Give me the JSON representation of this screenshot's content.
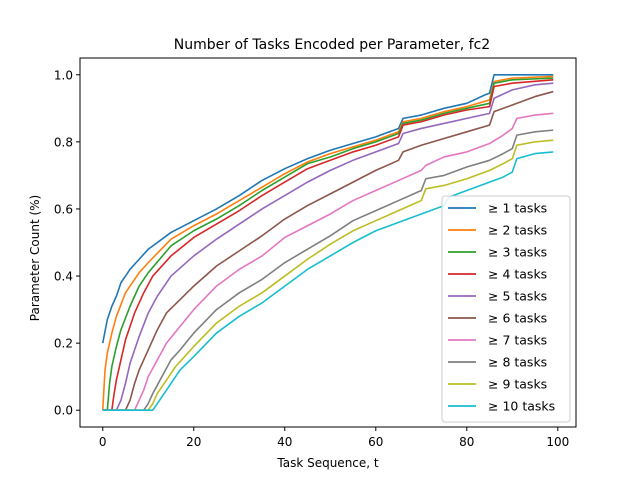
{
  "chart_data": {
    "type": "line",
    "title": "Number of Tasks Encoded per Parameter, fc2",
    "xlabel": "Task Sequence, t",
    "ylabel": "Parameter Count (%)",
    "xlim": [
      -5,
      104
    ],
    "ylim": [
      -0.05,
      1.05
    ],
    "xticks": [
      0,
      20,
      40,
      60,
      80,
      100
    ],
    "yticks": [
      0.0,
      0.2,
      0.4,
      0.6,
      0.8,
      1.0
    ],
    "ytick_labels": [
      "0.0",
      "0.2",
      "0.4",
      "0.6",
      "0.8",
      "1.0"
    ],
    "grid": false,
    "legend_position": "lower-right",
    "series": [
      {
        "name": "≥ 1 tasks",
        "color": "#1f77b4",
        "onset": 0,
        "points": [
          [
            0,
            0.2
          ],
          [
            1,
            0.27
          ],
          [
            2,
            0.31
          ],
          [
            3,
            0.34
          ],
          [
            4,
            0.38
          ],
          [
            6,
            0.42
          ],
          [
            8,
            0.45
          ],
          [
            10,
            0.48
          ],
          [
            15,
            0.53
          ],
          [
            20,
            0.565
          ],
          [
            25,
            0.6
          ],
          [
            30,
            0.64
          ],
          [
            35,
            0.685
          ],
          [
            40,
            0.72
          ],
          [
            45,
            0.75
          ],
          [
            50,
            0.775
          ],
          [
            55,
            0.795
          ],
          [
            60,
            0.815
          ],
          [
            65,
            0.84
          ],
          [
            66,
            0.87
          ],
          [
            70,
            0.88
          ],
          [
            75,
            0.9
          ],
          [
            80,
            0.915
          ],
          [
            84,
            0.94
          ],
          [
            85,
            0.945
          ],
          [
            86,
            1.0
          ],
          [
            99,
            1.0
          ]
        ]
      },
      {
        "name": "≥ 2 tasks",
        "color": "#ff7f0e",
        "onset": 0,
        "points": [
          [
            0,
            0.0
          ],
          [
            0.5,
            0.12
          ],
          [
            1,
            0.17
          ],
          [
            2,
            0.23
          ],
          [
            3,
            0.28
          ],
          [
            5,
            0.35
          ],
          [
            8,
            0.41
          ],
          [
            10,
            0.44
          ],
          [
            15,
            0.51
          ],
          [
            20,
            0.55
          ],
          [
            25,
            0.585
          ],
          [
            30,
            0.625
          ],
          [
            35,
            0.665
          ],
          [
            40,
            0.705
          ],
          [
            45,
            0.74
          ],
          [
            50,
            0.765
          ],
          [
            55,
            0.785
          ],
          [
            60,
            0.805
          ],
          [
            65,
            0.83
          ],
          [
            66,
            0.86
          ],
          [
            70,
            0.87
          ],
          [
            75,
            0.89
          ],
          [
            80,
            0.905
          ],
          [
            85,
            0.925
          ],
          [
            86,
            0.98
          ],
          [
            90,
            0.99
          ],
          [
            99,
            0.995
          ]
        ]
      },
      {
        "name": "≥ 3 tasks",
        "color": "#2ca02c",
        "onset": 1,
        "points": [
          [
            1,
            0.0
          ],
          [
            1.5,
            0.08
          ],
          [
            2,
            0.13
          ],
          [
            3,
            0.19
          ],
          [
            4,
            0.24
          ],
          [
            6,
            0.31
          ],
          [
            8,
            0.37
          ],
          [
            10,
            0.41
          ],
          [
            15,
            0.49
          ],
          [
            20,
            0.535
          ],
          [
            25,
            0.57
          ],
          [
            30,
            0.61
          ],
          [
            35,
            0.655
          ],
          [
            40,
            0.695
          ],
          [
            45,
            0.735
          ],
          [
            50,
            0.755
          ],
          [
            55,
            0.78
          ],
          [
            60,
            0.8
          ],
          [
            65,
            0.825
          ],
          [
            66,
            0.855
          ],
          [
            70,
            0.865
          ],
          [
            75,
            0.885
          ],
          [
            80,
            0.9
          ],
          [
            85,
            0.915
          ],
          [
            86,
            0.975
          ],
          [
            90,
            0.985
          ],
          [
            99,
            0.99
          ]
        ]
      },
      {
        "name": "≥ 4 tasks",
        "color": "#d62728",
        "onset": 2,
        "points": [
          [
            2,
            0.0
          ],
          [
            2.5,
            0.05
          ],
          [
            3,
            0.09
          ],
          [
            4,
            0.15
          ],
          [
            5,
            0.21
          ],
          [
            7,
            0.29
          ],
          [
            9,
            0.35
          ],
          [
            11,
            0.4
          ],
          [
            15,
            0.46
          ],
          [
            20,
            0.515
          ],
          [
            25,
            0.555
          ],
          [
            30,
            0.595
          ],
          [
            35,
            0.64
          ],
          [
            40,
            0.68
          ],
          [
            45,
            0.72
          ],
          [
            50,
            0.745
          ],
          [
            55,
            0.77
          ],
          [
            60,
            0.79
          ],
          [
            65,
            0.815
          ],
          [
            66,
            0.85
          ],
          [
            70,
            0.86
          ],
          [
            75,
            0.88
          ],
          [
            80,
            0.895
          ],
          [
            85,
            0.905
          ],
          [
            86,
            0.965
          ],
          [
            90,
            0.975
          ],
          [
            99,
            0.985
          ]
        ]
      },
      {
        "name": "≥ 5 tasks",
        "color": "#9467bd",
        "onset": 3,
        "points": [
          [
            3,
            0.0
          ],
          [
            4,
            0.03
          ],
          [
            5,
            0.08
          ],
          [
            6,
            0.14
          ],
          [
            8,
            0.22
          ],
          [
            10,
            0.29
          ],
          [
            12,
            0.34
          ],
          [
            15,
            0.4
          ],
          [
            20,
            0.46
          ],
          [
            25,
            0.51
          ],
          [
            30,
            0.555
          ],
          [
            35,
            0.6
          ],
          [
            40,
            0.64
          ],
          [
            45,
            0.68
          ],
          [
            50,
            0.715
          ],
          [
            55,
            0.745
          ],
          [
            60,
            0.77
          ],
          [
            65,
            0.795
          ],
          [
            66,
            0.825
          ],
          [
            70,
            0.84
          ],
          [
            75,
            0.855
          ],
          [
            80,
            0.87
          ],
          [
            85,
            0.885
          ],
          [
            86,
            0.93
          ],
          [
            90,
            0.955
          ],
          [
            95,
            0.97
          ],
          [
            99,
            0.975
          ]
        ]
      },
      {
        "name": "≥ 6 tasks",
        "color": "#8c564b",
        "onset": 5,
        "points": [
          [
            5,
            0.0
          ],
          [
            6,
            0.03
          ],
          [
            7,
            0.08
          ],
          [
            8,
            0.12
          ],
          [
            10,
            0.18
          ],
          [
            12,
            0.24
          ],
          [
            14,
            0.29
          ],
          [
            17,
            0.33
          ],
          [
            20,
            0.37
          ],
          [
            25,
            0.43
          ],
          [
            30,
            0.475
          ],
          [
            35,
            0.52
          ],
          [
            40,
            0.57
          ],
          [
            45,
            0.61
          ],
          [
            50,
            0.645
          ],
          [
            55,
            0.68
          ],
          [
            60,
            0.715
          ],
          [
            65,
            0.745
          ],
          [
            66,
            0.77
          ],
          [
            70,
            0.79
          ],
          [
            75,
            0.81
          ],
          [
            80,
            0.83
          ],
          [
            85,
            0.85
          ],
          [
            86,
            0.89
          ],
          [
            90,
            0.91
          ],
          [
            95,
            0.935
          ],
          [
            99,
            0.95
          ]
        ]
      },
      {
        "name": "≥ 7 tasks",
        "color": "#e377c2",
        "onset": 7,
        "points": [
          [
            7,
            0.0
          ],
          [
            8,
            0.03
          ],
          [
            9,
            0.06
          ],
          [
            10,
            0.1
          ],
          [
            12,
            0.15
          ],
          [
            14,
            0.2
          ],
          [
            17,
            0.25
          ],
          [
            20,
            0.3
          ],
          [
            25,
            0.37
          ],
          [
            30,
            0.42
          ],
          [
            35,
            0.46
          ],
          [
            40,
            0.515
          ],
          [
            45,
            0.55
          ],
          [
            50,
            0.585
          ],
          [
            55,
            0.625
          ],
          [
            60,
            0.655
          ],
          [
            65,
            0.685
          ],
          [
            70,
            0.715
          ],
          [
            71,
            0.73
          ],
          [
            75,
            0.755
          ],
          [
            80,
            0.77
          ],
          [
            85,
            0.795
          ],
          [
            88,
            0.82
          ],
          [
            90,
            0.84
          ],
          [
            91,
            0.87
          ],
          [
            95,
            0.88
          ],
          [
            99,
            0.885
          ]
        ]
      },
      {
        "name": "≥ 8 tasks",
        "color": "#7f7f7f",
        "onset": 9,
        "points": [
          [
            9,
            0.0
          ],
          [
            10,
            0.02
          ],
          [
            11,
            0.05
          ],
          [
            13,
            0.1
          ],
          [
            15,
            0.15
          ],
          [
            17,
            0.18
          ],
          [
            20,
            0.23
          ],
          [
            25,
            0.3
          ],
          [
            30,
            0.35
          ],
          [
            35,
            0.39
          ],
          [
            40,
            0.44
          ],
          [
            45,
            0.48
          ],
          [
            50,
            0.52
          ],
          [
            55,
            0.565
          ],
          [
            60,
            0.595
          ],
          [
            65,
            0.625
          ],
          [
            70,
            0.655
          ],
          [
            71,
            0.69
          ],
          [
            75,
            0.7
          ],
          [
            80,
            0.725
          ],
          [
            85,
            0.745
          ],
          [
            88,
            0.765
          ],
          [
            90,
            0.78
          ],
          [
            91,
            0.82
          ],
          [
            95,
            0.83
          ],
          [
            99,
            0.835
          ]
        ]
      },
      {
        "name": "≥ 9 tasks",
        "color": "#bcbd22",
        "onset": 10,
        "points": [
          [
            10,
            0.0
          ],
          [
            11,
            0.02
          ],
          [
            12,
            0.05
          ],
          [
            14,
            0.09
          ],
          [
            16,
            0.13
          ],
          [
            18,
            0.16
          ],
          [
            20,
            0.19
          ],
          [
            25,
            0.26
          ],
          [
            30,
            0.31
          ],
          [
            35,
            0.35
          ],
          [
            40,
            0.4
          ],
          [
            45,
            0.45
          ],
          [
            50,
            0.495
          ],
          [
            55,
            0.535
          ],
          [
            60,
            0.565
          ],
          [
            65,
            0.595
          ],
          [
            70,
            0.625
          ],
          [
            71,
            0.66
          ],
          [
            75,
            0.67
          ],
          [
            80,
            0.69
          ],
          [
            85,
            0.715
          ],
          [
            88,
            0.735
          ],
          [
            90,
            0.75
          ],
          [
            91,
            0.79
          ],
          [
            95,
            0.8
          ],
          [
            99,
            0.805
          ]
        ]
      },
      {
        "name": "≥ 10 tasks",
        "color": "#17becf",
        "onset": 11,
        "points": [
          [
            11,
            0.0
          ],
          [
            12,
            0.02
          ],
          [
            13,
            0.04
          ],
          [
            15,
            0.08
          ],
          [
            17,
            0.12
          ],
          [
            20,
            0.16
          ],
          [
            25,
            0.23
          ],
          [
            30,
            0.28
          ],
          [
            35,
            0.32
          ],
          [
            40,
            0.37
          ],
          [
            45,
            0.42
          ],
          [
            50,
            0.46
          ],
          [
            55,
            0.5
          ],
          [
            60,
            0.535
          ],
          [
            65,
            0.56
          ],
          [
            70,
            0.585
          ],
          [
            75,
            0.61
          ],
          [
            76,
            0.635
          ],
          [
            80,
            0.655
          ],
          [
            85,
            0.68
          ],
          [
            88,
            0.695
          ],
          [
            90,
            0.71
          ],
          [
            91,
            0.75
          ],
          [
            95,
            0.765
          ],
          [
            99,
            0.77
          ]
        ]
      }
    ]
  }
}
